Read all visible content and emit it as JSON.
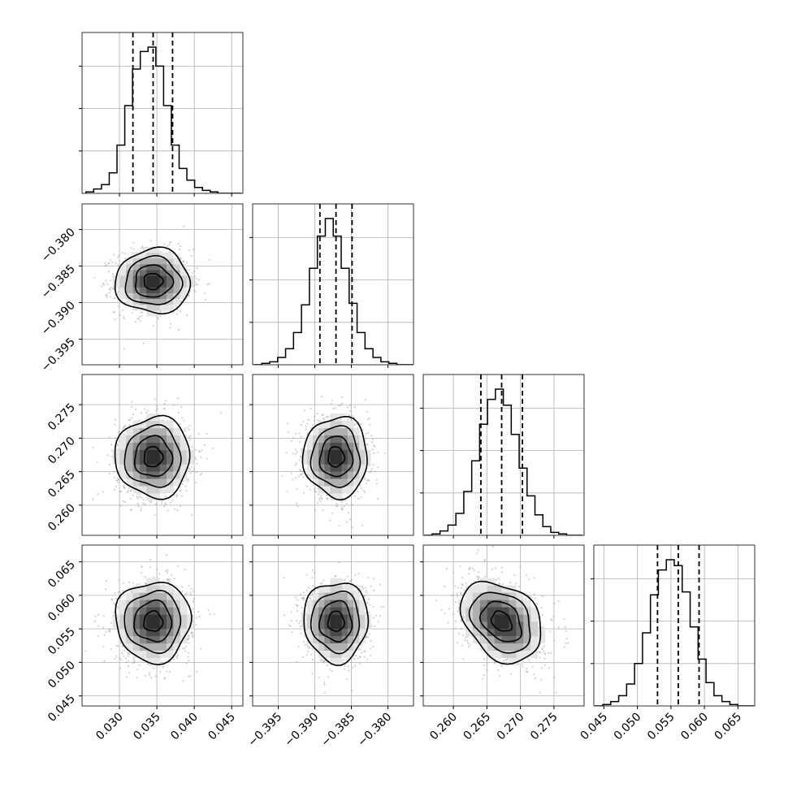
{
  "chart_data": {
    "type": "corner",
    "n_params": 4,
    "params": [
      {
        "range": [
          0.025,
          0.0465
        ],
        "ticks": [
          0.03,
          0.035,
          0.04,
          0.045
        ],
        "tick_labels": [
          "0.030",
          "0.035",
          "0.040",
          "0.045"
        ],
        "quantiles": [
          0.0318,
          0.0345,
          0.0371
        ],
        "mean": 0.0345,
        "sd": 0.0025
      },
      {
        "range": [
          -0.3985,
          -0.3765
        ],
        "ticks": [
          -0.395,
          -0.39,
          -0.385,
          -0.38
        ],
        "tick_labels": [
          "−0.395",
          "−0.390",
          "−0.385",
          "−0.380"
        ],
        "quantiles": [
          -0.3893,
          -0.3871,
          -0.3849
        ],
        "mean": -0.3871,
        "sd": 0.0022
      },
      {
        "range": [
          0.2555,
          0.2795
        ],
        "ticks": [
          0.26,
          0.265,
          0.27,
          0.275
        ],
        "tick_labels": [
          "0.260",
          "0.265",
          "0.270",
          "0.275"
        ],
        "quantiles": [
          0.2641,
          0.2672,
          0.2703
        ],
        "mean": 0.2672,
        "sd": 0.003
      },
      {
        "range": [
          0.0435,
          0.0675
        ],
        "ticks": [
          0.045,
          0.05,
          0.055,
          0.06,
          0.065
        ],
        "tick_labels": [
          "0.045",
          "0.050",
          "0.055",
          "0.060",
          "0.065"
        ],
        "quantiles": [
          0.053,
          0.0561,
          0.0592
        ],
        "mean": 0.0561,
        "sd": 0.003
      }
    ],
    "histograms": [
      {
        "param": 0,
        "n_bins": 20,
        "edges": [
          0.02552,
          0.04628
        ],
        "counts": [
          0.01,
          0.03,
          0.06,
          0.14,
          0.33,
          0.6,
          0.85,
          0.97,
          1.0,
          0.87,
          0.6,
          0.33,
          0.17,
          0.09,
          0.04,
          0.02,
          0.01,
          0.0,
          0.0,
          0.0
        ]
      },
      {
        "param": 1,
        "n_bins": 20,
        "edges": [
          -0.39834,
          -0.37661
        ],
        "counts": [
          0.0,
          0.01,
          0.02,
          0.05,
          0.11,
          0.22,
          0.41,
          0.66,
          0.88,
          1.0,
          0.88,
          0.66,
          0.42,
          0.22,
          0.11,
          0.05,
          0.02,
          0.01,
          0.0,
          0.0
        ]
      },
      {
        "param": 2,
        "n_bins": 20,
        "edges": [
          0.25565,
          0.27925
        ],
        "counts": [
          0.0,
          0.01,
          0.03,
          0.07,
          0.15,
          0.3,
          0.51,
          0.76,
          0.93,
          1.0,
          0.89,
          0.69,
          0.46,
          0.27,
          0.14,
          0.06,
          0.02,
          0.01,
          0.0,
          0.0
        ]
      },
      {
        "param": 3,
        "n_bins": 20,
        "edges": [
          0.04365,
          0.06735
        ],
        "counts": [
          0.0,
          0.01,
          0.03,
          0.07,
          0.15,
          0.29,
          0.5,
          0.76,
          0.93,
          1.0,
          0.96,
          0.78,
          0.54,
          0.32,
          0.16,
          0.07,
          0.03,
          0.01,
          0.0,
          0.0
        ]
      }
    ],
    "pairs": [
      {
        "x": 0,
        "y": 1,
        "correlation": 0.0
      },
      {
        "x": 0,
        "y": 2,
        "correlation": 0.0
      },
      {
        "x": 1,
        "y": 2,
        "correlation": 0.0
      },
      {
        "x": 0,
        "y": 3,
        "correlation": 0.0
      },
      {
        "x": 1,
        "y": 3,
        "correlation": 0.0
      },
      {
        "x": 2,
        "y": 3,
        "correlation": -0.3
      }
    ],
    "contour_levels_sigma": [
      0.5,
      1.0,
      1.5,
      2.0
    ],
    "n_samples_shown": 1200,
    "grid": true
  }
}
